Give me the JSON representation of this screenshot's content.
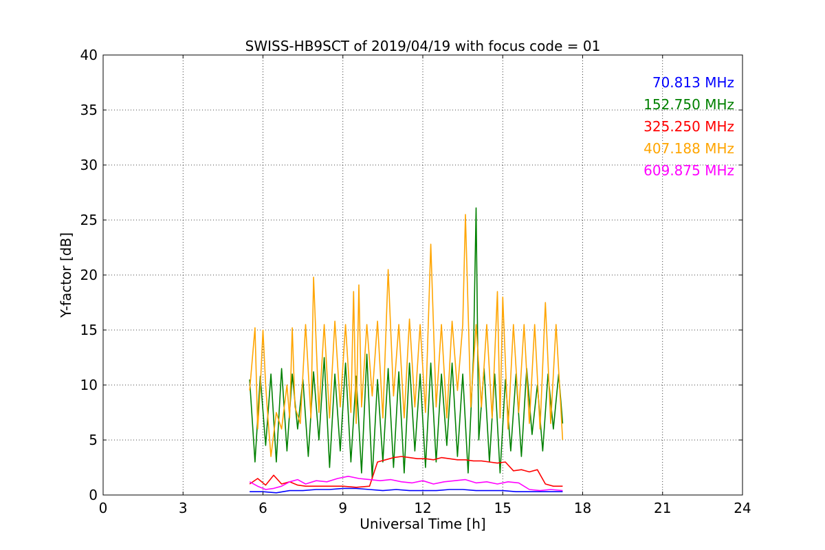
{
  "chart_data": {
    "type": "line",
    "title": "SWISS-HB9SCT of 2019/04/19 with focus code = 01",
    "xlabel": "Universal Time [h]",
    "ylabel": "Y-factor [dB]",
    "xlim": [
      0,
      24
    ],
    "ylim": [
      0,
      40
    ],
    "xticks": [
      "0",
      "3",
      "6",
      "9",
      "12",
      "15",
      "18",
      "21",
      "24"
    ],
    "yticks": [
      "0",
      "5",
      "10",
      "15",
      "20",
      "25",
      "30",
      "35",
      "40"
    ],
    "grid": true,
    "legend": "top-right",
    "series": [
      {
        "name": "70.813 MHz",
        "color": "#0000ff",
        "x": [
          5.5,
          6.0,
          6.5,
          7.0,
          7.5,
          8.0,
          8.5,
          9.0,
          9.5,
          10.0,
          10.5,
          11.0,
          11.5,
          12.0,
          12.5,
          13.0,
          13.5,
          14.0,
          14.5,
          15.0,
          15.5,
          16.0,
          16.5,
          17.0,
          17.25
        ],
        "y": [
          0.3,
          0.3,
          0.2,
          0.4,
          0.4,
          0.5,
          0.5,
          0.6,
          0.6,
          0.5,
          0.4,
          0.5,
          0.4,
          0.4,
          0.4,
          0.5,
          0.5,
          0.4,
          0.4,
          0.4,
          0.3,
          0.3,
          0.3,
          0.3,
          0.3
        ]
      },
      {
        "name": "152.750 MHz",
        "color": "#008000",
        "x": [
          5.5,
          5.7,
          5.9,
          6.1,
          6.3,
          6.5,
          6.7,
          6.9,
          7.1,
          7.3,
          7.5,
          7.7,
          7.9,
          8.1,
          8.3,
          8.5,
          8.7,
          8.9,
          9.1,
          9.3,
          9.5,
          9.7,
          9.9,
          10.1,
          10.3,
          10.5,
          10.7,
          10.9,
          11.1,
          11.3,
          11.5,
          11.7,
          11.9,
          12.1,
          12.3,
          12.5,
          12.7,
          12.9,
          13.1,
          13.3,
          13.5,
          13.7,
          13.9,
          14.0,
          14.1,
          14.3,
          14.5,
          14.7,
          14.9,
          15.1,
          15.3,
          15.5,
          15.7,
          15.9,
          16.1,
          16.3,
          16.5,
          16.7,
          16.9,
          17.1,
          17.25
        ],
        "y": [
          10.5,
          3.0,
          10.8,
          4.5,
          11.0,
          3.0,
          11.5,
          4.0,
          11.0,
          6.0,
          10.5,
          3.5,
          11.2,
          5.0,
          12.5,
          2.5,
          11.0,
          4.0,
          12.0,
          3.0,
          10.8,
          2.0,
          12.8,
          1.5,
          10.5,
          3.0,
          11.5,
          2.5,
          11.2,
          2.0,
          12.0,
          4.0,
          11.0,
          2.5,
          12.0,
          3.0,
          11.0,
          4.5,
          12.0,
          3.5,
          11.0,
          2.0,
          12.5,
          26.1,
          5.0,
          11.5,
          3.0,
          11.0,
          2.0,
          10.5,
          4.0,
          11.0,
          3.5,
          11.5,
          5.5,
          10.0,
          4.0,
          11.0,
          6.0,
          11.0,
          6.5
        ]
      },
      {
        "name": "325.250 MHz",
        "color": "#ff0000",
        "x": [
          5.5,
          5.8,
          6.1,
          6.4,
          6.7,
          7.0,
          7.3,
          7.6,
          8.0,
          8.5,
          9.0,
          9.5,
          10.0,
          10.3,
          10.6,
          10.9,
          11.2,
          11.5,
          11.8,
          12.1,
          12.4,
          12.7,
          13.0,
          13.3,
          13.6,
          13.9,
          14.2,
          14.5,
          14.8,
          15.1,
          15.4,
          15.7,
          16.0,
          16.3,
          16.6,
          16.9,
          17.25
        ],
        "y": [
          1.0,
          1.5,
          0.9,
          1.8,
          1.0,
          1.2,
          0.9,
          0.8,
          0.8,
          0.8,
          0.8,
          0.7,
          0.8,
          3.0,
          3.2,
          3.4,
          3.5,
          3.4,
          3.3,
          3.3,
          3.2,
          3.4,
          3.3,
          3.2,
          3.2,
          3.1,
          3.1,
          3.0,
          2.9,
          3.0,
          2.2,
          2.3,
          2.1,
          2.3,
          1.0,
          0.8,
          0.8
        ]
      },
      {
        "name": "407.188 MHz",
        "color": "#ffa500",
        "x": [
          5.5,
          5.7,
          5.8,
          5.9,
          6.0,
          6.1,
          6.2,
          6.3,
          6.5,
          6.7,
          6.9,
          7.0,
          7.1,
          7.2,
          7.4,
          7.6,
          7.8,
          7.9,
          8.1,
          8.3,
          8.5,
          8.7,
          8.9,
          9.1,
          9.3,
          9.4,
          9.5,
          9.6,
          9.7,
          9.9,
          10.1,
          10.3,
          10.5,
          10.7,
          10.9,
          11.1,
          11.3,
          11.5,
          11.7,
          11.9,
          12.1,
          12.3,
          12.5,
          12.7,
          12.9,
          13.1,
          13.3,
          13.5,
          13.6,
          13.8,
          14.0,
          14.2,
          14.4,
          14.6,
          14.8,
          14.9,
          15.0,
          15.2,
          15.4,
          15.6,
          15.8,
          16.0,
          16.2,
          16.4,
          16.6,
          16.8,
          17.0,
          17.25
        ],
        "y": [
          9.5,
          15.2,
          6.0,
          9.8,
          15.0,
          10.0,
          6.5,
          3.5,
          7.5,
          6.0,
          10.0,
          7.0,
          15.2,
          8.0,
          6.5,
          15.5,
          7.0,
          19.8,
          7.5,
          15.5,
          7.0,
          15.8,
          8.0,
          15.5,
          7.5,
          18.5,
          6.5,
          19.1,
          8.0,
          15.5,
          9.0,
          15.8,
          7.0,
          20.5,
          9.0,
          15.5,
          7.0,
          16.0,
          8.0,
          15.5,
          7.5,
          22.8,
          8.0,
          15.5,
          7.0,
          15.8,
          9.5,
          15.5,
          25.5,
          8.0,
          15.5,
          8.0,
          15.5,
          7.0,
          18.5,
          7.0,
          18.0,
          6.0,
          15.5,
          7.5,
          15.5,
          6.5,
          15.5,
          6.0,
          17.5,
          6.5,
          15.5,
          5.0
        ]
      },
      {
        "name": "609.875 MHz",
        "color": "#ff00ff",
        "x": [
          5.5,
          5.8,
          6.1,
          6.4,
          6.7,
          7.0,
          7.3,
          7.6,
          8.0,
          8.4,
          8.8,
          9.2,
          9.6,
          10.0,
          10.4,
          10.8,
          11.2,
          11.6,
          12.0,
          12.4,
          12.8,
          13.2,
          13.6,
          14.0,
          14.4,
          14.8,
          15.2,
          15.6,
          16.0,
          16.4,
          16.8,
          17.25
        ],
        "y": [
          1.2,
          0.8,
          0.5,
          0.6,
          0.8,
          1.2,
          1.4,
          1.0,
          1.3,
          1.2,
          1.5,
          1.7,
          1.5,
          1.4,
          1.3,
          1.4,
          1.2,
          1.1,
          1.3,
          1.0,
          1.2,
          1.3,
          1.4,
          1.1,
          1.2,
          1.0,
          1.2,
          1.1,
          0.5,
          0.4,
          0.5,
          0.4
        ]
      }
    ]
  }
}
